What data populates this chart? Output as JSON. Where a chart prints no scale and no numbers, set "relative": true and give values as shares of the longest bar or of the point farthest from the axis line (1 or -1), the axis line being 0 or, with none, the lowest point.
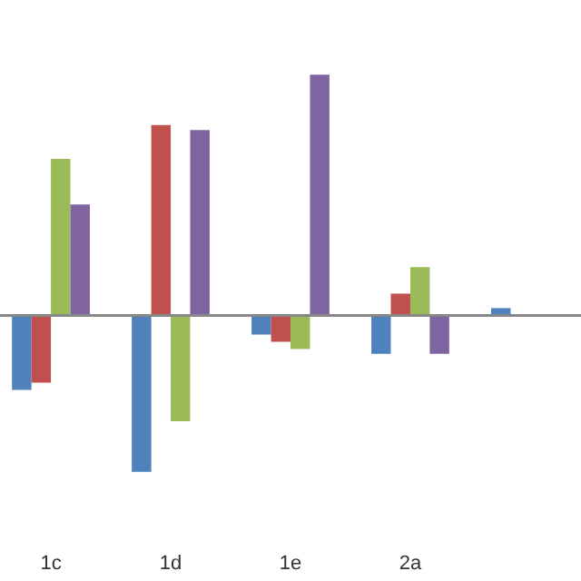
{
  "chart_data": {
    "type": "bar",
    "relative": true,
    "categories": [
      "1c",
      "1d",
      "1e",
      "2a",
      null
    ],
    "series": [
      {
        "color": "#4f81bd",
        "values": [
          -0.31,
          -0.65,
          -0.08,
          -0.16,
          0.03
        ]
      },
      {
        "color": "#c0504d",
        "values": [
          -0.28,
          0.79,
          -0.11,
          0.09,
          null
        ]
      },
      {
        "color": "#9bbb59",
        "values": [
          0.65,
          -0.44,
          -0.14,
          0.2,
          null
        ]
      },
      {
        "color": "#8064a2",
        "values": [
          0.46,
          0.77,
          1,
          -0.16,
          null
        ]
      }
    ]
  }
}
